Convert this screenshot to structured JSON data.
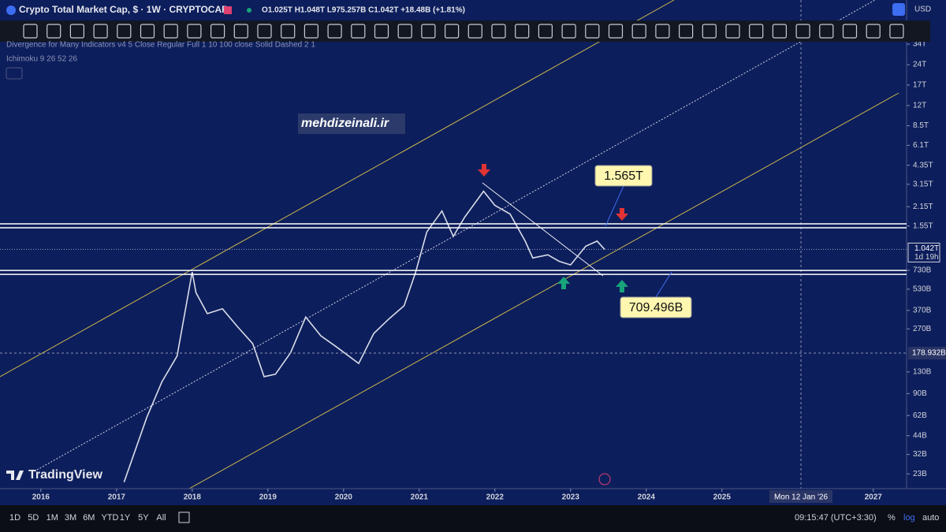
{
  "header": {
    "title": "Crypto Total Market Cap, $ · 1W · CRYPTOCAP",
    "ohlc": "O1.025T H1.048T L975.257B C1.042T +18.48B (+1.81%)",
    "currency": "USD"
  },
  "indicators": [
    "Divergence for Many Indicators v4 5 Close Regular Full 1 10 100 close Solid Dashed 2 1",
    "Ichimoku 9 26 52 26"
  ],
  "watermark": "mehdizeinali.ir",
  "logo": "TradingView",
  "chart": {
    "type": "line",
    "log_scale": true,
    "x": [
      2017.1,
      2017.4,
      2017.6,
      2017.8,
      2018.0,
      2018.05,
      2018.2,
      2018.4,
      2018.6,
      2018.8,
      2018.95,
      2019.1,
      2019.3,
      2019.5,
      2019.7,
      2019.9,
      2020.2,
      2020.4,
      2020.6,
      2020.8,
      2020.95,
      2021.1,
      2021.3,
      2021.45,
      2021.6,
      2021.85,
      2022.0,
      2022.2,
      2022.4,
      2022.5,
      2022.7,
      2022.85,
      2023.0,
      2023.2,
      2023.35,
      2023.45
    ],
    "values": [
      20000000000,
      60000000000,
      110000000000,
      170000000000,
      710000000000,
      500000000000,
      350000000000,
      380000000000,
      280000000000,
      210000000000,
      120000000000,
      125000000000,
      180000000000,
      330000000000,
      240000000000,
      200000000000,
      150000000000,
      250000000000,
      320000000000,
      400000000000,
      700000000000,
      1400000000000,
      2000000000000,
      1300000000000,
      1800000000000,
      2800000000000,
      2200000000000,
      1900000000000,
      1200000000000,
      900000000000,
      950000000000,
      850000000000,
      800000000000,
      1100000000000,
      1200000000000,
      1042000000000
    ],
    "color": "#d8dce8",
    "xlim": [
      2015.46,
      2027.44
    ],
    "xticks": [
      2016,
      2017,
      2018,
      2019,
      2020,
      2021,
      2022,
      2023,
      2024,
      2025,
      2027
    ],
    "ylim": [
      17900000000,
      72000000000000
    ],
    "yticks": [
      {
        "value": 34000000000000,
        "label": "34T"
      },
      {
        "value": 24000000000000,
        "label": "24T"
      },
      {
        "value": 17000000000000,
        "label": "17T"
      },
      {
        "value": 12000000000000,
        "label": "12T"
      },
      {
        "value": 8500000000000,
        "label": "8.5T"
      },
      {
        "value": 6100000000000,
        "label": "6.1T"
      },
      {
        "value": 4350000000000,
        "label": "4.35T"
      },
      {
        "value": 3150000000000,
        "label": "3.15T"
      },
      {
        "value": 2150000000000,
        "label": "2.15T"
      },
      {
        "value": 1550000000000,
        "label": "1.55T"
      },
      {
        "value": 730000000000,
        "label": "730B"
      },
      {
        "value": 530000000000,
        "label": "530B"
      },
      {
        "value": 370000000000,
        "label": "370B"
      },
      {
        "value": 270000000000,
        "label": "270B"
      },
      {
        "value": 130000000000,
        "label": "130B"
      },
      {
        "value": 90000000000,
        "label": "90B"
      },
      {
        "value": 62000000000,
        "label": "62B"
      },
      {
        "value": 44000000000,
        "label": "44B"
      },
      {
        "value": 32000000000,
        "label": "32B"
      },
      {
        "value": 23000000000,
        "label": "23B"
      }
    ],
    "current": {
      "value": 1042000000000,
      "label": "1.042T",
      "countdown": "1d 19h"
    },
    "crosshair": {
      "value": 178932000000,
      "label": "178.932B",
      "date": "Mon 12 Jan '26"
    },
    "callouts": [
      {
        "value": 1565000000000,
        "label": "1.565T"
      },
      {
        "value": 709496000000,
        "label": "709.496B"
      }
    ]
  },
  "footer": {
    "ranges": [
      "1D",
      "5D",
      "1M",
      "3M",
      "6M",
      "YTD",
      "1Y",
      "5Y",
      "All"
    ],
    "time": "09:15:47 (UTC+3:30)",
    "percent": "%",
    "log": "log",
    "auto": "auto"
  }
}
